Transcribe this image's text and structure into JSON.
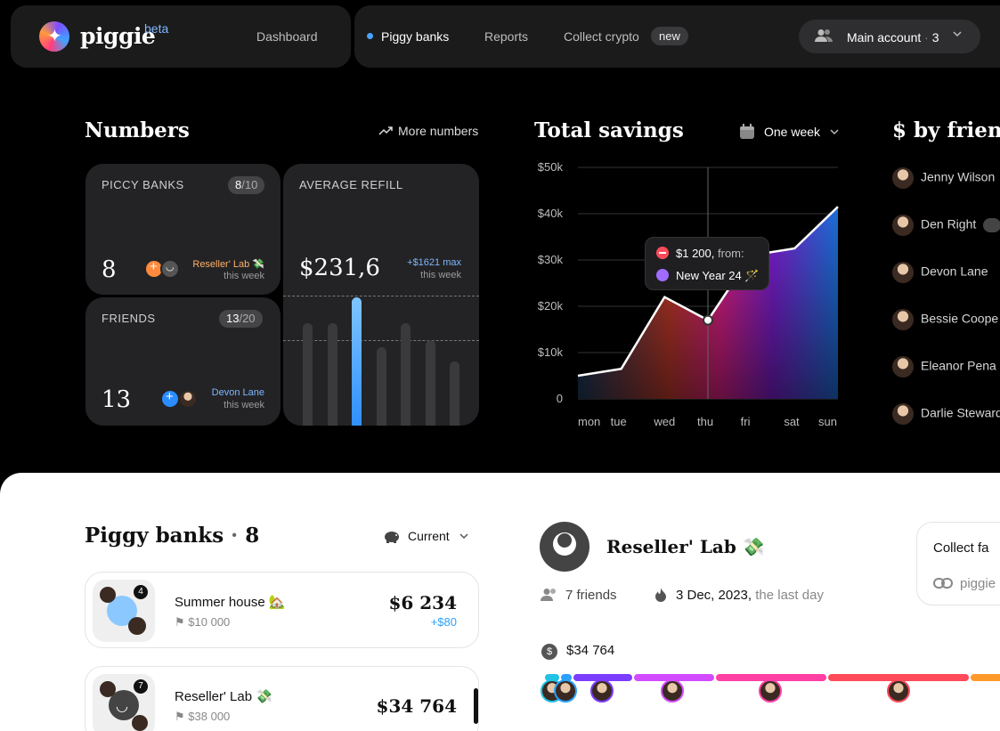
{
  "nav": {
    "brand": "piggie",
    "beta": "beta",
    "links": [
      "Dashboard",
      "Piggy banks",
      "Reports",
      "Collect crypto"
    ],
    "new_badge": "new",
    "account_label": "Main account",
    "account_count": "3"
  },
  "numbers": {
    "title": "Numbers",
    "more": "More numbers",
    "piggy_banks": {
      "label": "PICCY BANKS",
      "pill_cur": "8",
      "pill_max": "/10",
      "value": "8",
      "who": "Reseller' Lab",
      "when": "this week"
    },
    "friends": {
      "label": "FRIENDS",
      "pill_cur": "13",
      "pill_max": "/20",
      "value": "13",
      "who": "Devon Lane",
      "when": "this week"
    },
    "refill": {
      "label": "AVERAGE REFILL",
      "value": "$231,6",
      "max": "+$1621 max",
      "when": "this week",
      "bar_levels": [
        0.72,
        0.72,
        0.9,
        0.55,
        0.72,
        0.6,
        0.45
      ]
    }
  },
  "savings": {
    "title": "Total savings",
    "period": "One week",
    "tooltip_amount": "$1 200,",
    "tooltip_from": "from:",
    "tooltip_source": "New Year 24"
  },
  "chart_data": {
    "type": "area",
    "title": "Total savings",
    "categories": [
      "mon",
      "tue",
      "wed",
      "thu",
      "fri",
      "sat",
      "sun"
    ],
    "y_ticks": [
      "$50k",
      "$40k",
      "$30k",
      "$20k",
      "$10k",
      "0"
    ],
    "ylim": [
      0,
      50000
    ],
    "values": [
      5000,
      6500,
      22000,
      17000,
      31000,
      32500,
      41500
    ],
    "highlight_index": 3,
    "grid": true
  },
  "by_friend": {
    "title": "$ by friend",
    "friends": [
      "Jenny Wilson",
      "Den Right",
      "Devon Lane",
      "Bessie Coope",
      "Eleanor Pena",
      "Darlie Steward"
    ]
  },
  "piggy_list": {
    "title": "Piggy banks",
    "count": "8",
    "filter": "Current",
    "items": [
      {
        "name": "Summer house",
        "goal": "$10 000",
        "value": "$6 234",
        "added": "+$80",
        "badge": "4"
      },
      {
        "name": "Reseller' Lab",
        "goal": "$38 000",
        "value": "$34 764",
        "added": "",
        "badge": "7"
      }
    ]
  },
  "detail": {
    "name": "Reseller' Lab",
    "friends": "7 friends",
    "date": "3 Dec, 2023,",
    "date_note": "the last day",
    "total": "$34 764",
    "collect_title": "Collect fa",
    "collect_link": "piggie"
  },
  "colors": {
    "accent": "#4aa3ff",
    "timeline": [
      "#22c3e6",
      "#7b3dff",
      "#d24bff",
      "#ff3fa4",
      "#ff4a5a",
      "#ff9a2a"
    ]
  }
}
